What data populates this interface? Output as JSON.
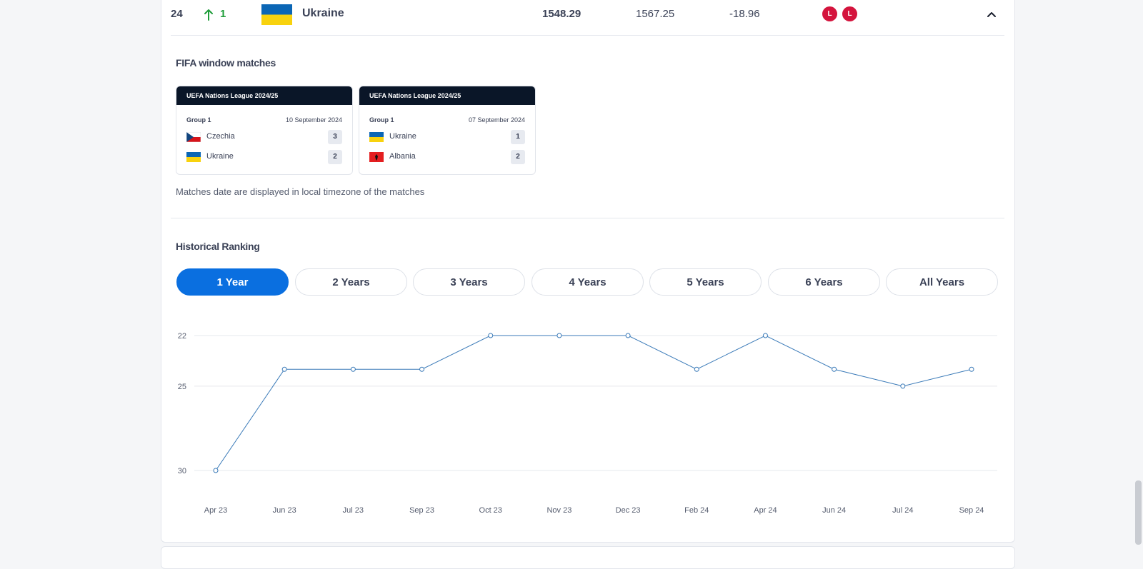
{
  "ranking_row": {
    "rank": "24",
    "movement": "1",
    "country": "Ukraine",
    "total_points": "1548.29",
    "previous_points": "1567.25",
    "points_change": "-18.96",
    "results": [
      "L",
      "L"
    ],
    "colors": {
      "up": "#1f9d3a",
      "loss": "#d4143d"
    }
  },
  "fifa_window": {
    "title": "FIFA window matches",
    "matches": [
      {
        "competition": "UEFA Nations League 2024/25",
        "group": "Group 1",
        "date": "10 September 2024",
        "home": {
          "team": "Czechia",
          "score": "3",
          "flag": "czechia-flag-icon"
        },
        "away": {
          "team": "Ukraine",
          "score": "2",
          "flag": "ukraine-flag-icon"
        }
      },
      {
        "competition": "UEFA Nations League 2024/25",
        "group": "Group 1",
        "date": "07 September 2024",
        "home": {
          "team": "Ukraine",
          "score": "1",
          "flag": "ukraine-flag-icon"
        },
        "away": {
          "team": "Albania",
          "score": "2",
          "flag": "albania-flag-icon"
        }
      }
    ],
    "note": "Matches date are displayed in local timezone of the matches"
  },
  "historical": {
    "title": "Historical Ranking",
    "ranges": [
      "1 Year",
      "2 Years",
      "3 Years",
      "4 Years",
      "5 Years",
      "6 Years",
      "All Years"
    ],
    "active_range": "1 Year",
    "accent": "#0a6fe0"
  },
  "chart_data": {
    "type": "line",
    "title": "",
    "xlabel": "",
    "ylabel": "",
    "y_reversed": true,
    "yticks": [
      22,
      25,
      30
    ],
    "ylim": [
      22,
      30
    ],
    "categories": [
      "Apr 23",
      "Jun 23",
      "Jul 23",
      "Sep 23",
      "Oct 23",
      "Nov 23",
      "Dec 23",
      "Feb 24",
      "Apr 24",
      "Jun 24",
      "Jul 24",
      "Sep 24"
    ],
    "values": [
      30,
      24,
      24,
      24,
      22,
      22,
      22,
      24,
      22,
      24,
      25,
      24
    ],
    "grid": true,
    "line_color": "#3a7ab8"
  }
}
